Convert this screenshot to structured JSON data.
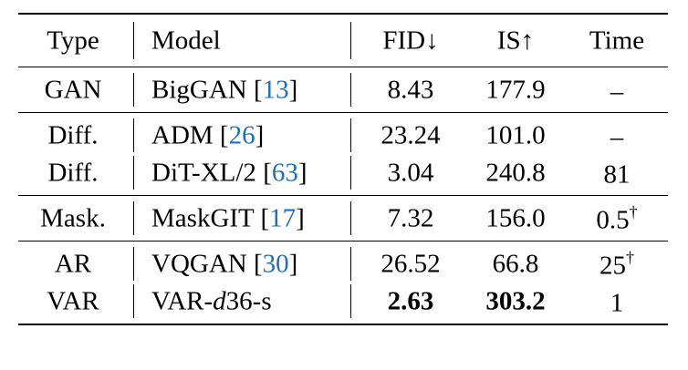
{
  "headers": {
    "type": "Type",
    "model": "Model",
    "fid": "FID↓",
    "is": "IS↑",
    "time": "Time"
  },
  "groups": [
    [
      {
        "type": "GAN",
        "model": "BigGAN",
        "cite": "13",
        "fid": "8.43",
        "is": "177.9",
        "time": "–",
        "time_sup": ""
      }
    ],
    [
      {
        "type": "Diff.",
        "model": "ADM",
        "cite": "26",
        "fid": "23.24",
        "is": "101.0",
        "time": "–",
        "time_sup": ""
      },
      {
        "type": "Diff.",
        "model": "DiT-XL/2",
        "cite": "63",
        "fid": "3.04",
        "is": "240.8",
        "time": "81",
        "time_sup": ""
      }
    ],
    [
      {
        "type": "Mask.",
        "model": "MaskGIT",
        "cite": "17",
        "fid": "7.32",
        "is": "156.0",
        "time": "0.5",
        "time_sup": "†"
      }
    ],
    [
      {
        "type": "AR",
        "model": "VQGAN",
        "cite": "30",
        "fid": "26.52",
        "is": "66.8",
        "time": "25",
        "time_sup": "†"
      },
      {
        "type": "VAR",
        "model_prefix": "VAR-",
        "model_italic": "d",
        "model_suffix": "36-s",
        "fid": "2.63",
        "is": "303.2",
        "time": "1",
        "time_sup": "",
        "bold_scores": true
      }
    ]
  ]
}
